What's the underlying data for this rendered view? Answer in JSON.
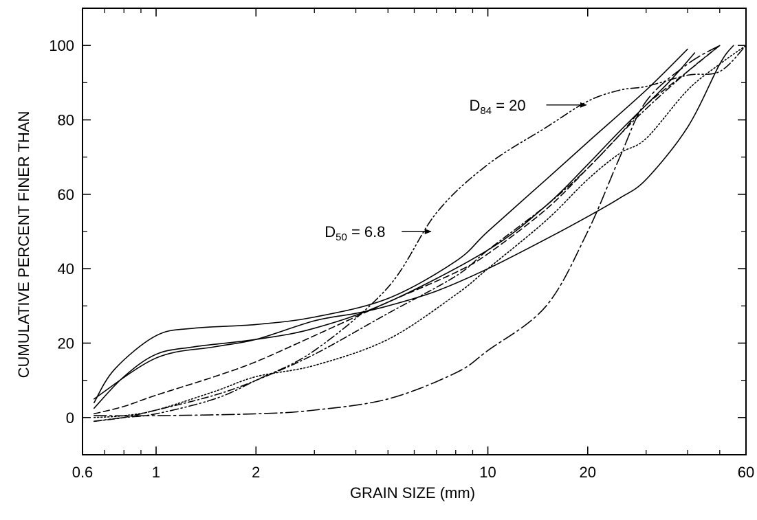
{
  "chart_data": {
    "type": "line",
    "title": "",
    "xlabel": "GRAIN SIZE (mm)",
    "ylabel": "CUMULATIVE PERCENT FINER THAN",
    "x_scale": "log",
    "xlim": [
      0.6,
      60
    ],
    "ylim": [
      -10,
      110
    ],
    "grid": false,
    "x_ticks": [
      {
        "value": 0.6,
        "label": "0.6"
      },
      {
        "value": 1,
        "label": "1"
      },
      {
        "value": 2,
        "label": "2"
      },
      {
        "value": 10,
        "label": "10"
      },
      {
        "value": 20,
        "label": "20"
      },
      {
        "value": 60,
        "label": "60"
      }
    ],
    "x_minor_ticks": [
      0.7,
      0.8,
      0.9,
      3,
      4,
      5,
      6,
      7,
      8,
      9,
      30,
      40,
      50
    ],
    "y_ticks": [
      0,
      20,
      40,
      60,
      80,
      100
    ],
    "y_minor_ticks": [
      -10,
      10,
      30,
      50,
      70,
      90,
      110
    ],
    "series": [
      {
        "style": "solid",
        "x": [
          0.65,
          0.8,
          1.0,
          1.3,
          2.0,
          3.0,
          5.0,
          10,
          15,
          20,
          25,
          35,
          42
        ],
        "y": [
          2.5,
          11,
          17,
          19,
          21,
          24,
          31,
          45,
          57,
          68,
          77,
          90,
          98
        ]
      },
      {
        "style": "solid",
        "x": [
          0.65,
          0.75,
          1.0,
          1.3,
          2.0,
          3.0,
          5.0,
          8.0,
          10,
          15,
          20,
          30,
          40
        ],
        "y": [
          4,
          13,
          22,
          24,
          25,
          27,
          32,
          42,
          50,
          64,
          74,
          88,
          99
        ]
      },
      {
        "style": "solid",
        "x": [
          0.65,
          1.0,
          1.5,
          2.0,
          3.0,
          4.0,
          5.0,
          7.0,
          10,
          15,
          20,
          25,
          30,
          40,
          50,
          55
        ],
        "y": [
          5,
          16,
          19,
          21,
          26,
          28,
          30,
          34,
          40,
          48,
          54,
          59,
          64,
          78,
          95,
          100
        ]
      },
      {
        "style": "dashed",
        "x": [
          0.65,
          0.8,
          1.0,
          1.5,
          2.0,
          3.0,
          5.0,
          8.0,
          10,
          15,
          20,
          25,
          30,
          40,
          50
        ],
        "y": [
          1,
          3,
          6,
          11,
          15,
          22,
          31,
          39,
          44,
          56,
          67,
          76,
          84,
          93,
          100
        ]
      },
      {
        "style": "dotted",
        "x": [
          0.65,
          0.8,
          1.0,
          1.5,
          2.0,
          3.0,
          5.0,
          8.0,
          10,
          15,
          20,
          25,
          30,
          40,
          50,
          60
        ],
        "y": [
          0,
          0.5,
          2,
          7,
          11,
          14,
          21,
          33,
          40,
          53,
          64,
          71,
          75,
          88,
          95,
          100
        ]
      },
      {
        "style": "dashdot",
        "x": [
          0.65,
          0.8,
          1.0,
          1.5,
          2.0,
          3.0,
          5.0,
          8.0,
          10,
          15,
          20,
          25,
          30,
          40,
          50
        ],
        "y": [
          -1,
          0,
          2,
          6,
          10,
          17,
          28,
          38,
          45,
          57,
          67,
          76,
          83,
          93,
          100
        ]
      },
      {
        "style": "dashdotdot",
        "x": [
          0.65,
          0.8,
          1.0,
          1.5,
          2.0,
          3.0,
          5.0,
          7.0,
          10,
          15,
          20,
          25,
          30,
          40,
          50,
          60
        ],
        "y": [
          -1,
          0,
          1,
          5,
          10,
          18,
          35,
          55,
          68,
          78,
          85,
          88,
          89,
          92,
          93,
          100
        ]
      },
      {
        "style": "longdashdot",
        "x": [
          0.65,
          1.0,
          2.0,
          3.0,
          5.0,
          8.0,
          10,
          15,
          20,
          25,
          30,
          40,
          50
        ],
        "y": [
          0.5,
          0.5,
          1,
          2,
          5,
          12,
          18,
          30,
          50,
          70,
          85,
          95,
          100
        ]
      }
    ],
    "annotations": [
      {
        "text_main": "D",
        "text_sub": "84",
        "text_rest": " = 20",
        "arrow_from": [
          15,
          84
        ],
        "arrow_to": [
          20,
          84
        ]
      },
      {
        "text_main": "D",
        "text_sub": "50",
        "text_rest": " = 6.8",
        "arrow_from": [
          5.5,
          50
        ],
        "arrow_to": [
          6.8,
          50
        ]
      }
    ]
  }
}
